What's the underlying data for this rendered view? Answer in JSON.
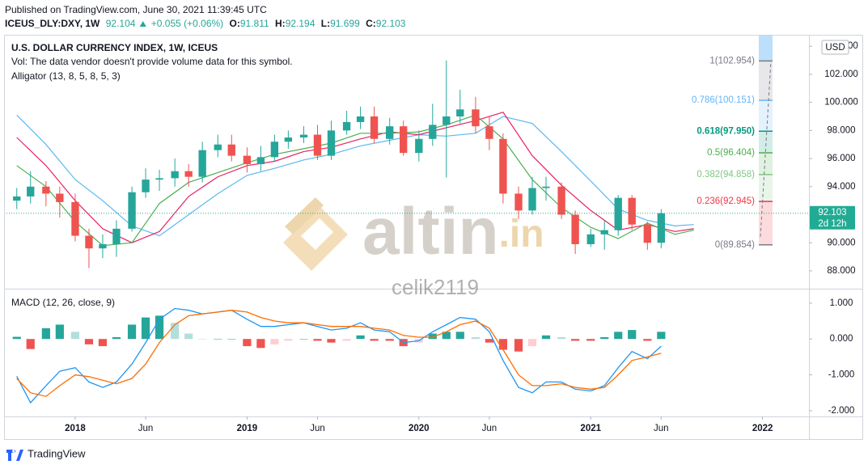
{
  "header": {
    "published": "Published on TradingView.com, June 30, 2021 11:39:45 UTC",
    "symbol": "ICEUS_DLY:DXY, 1W",
    "last": "92.104",
    "change": "+0.055 (+0.06%)",
    "o_label": "O:",
    "o": "91.811",
    "h_label": "H:",
    "h": "92.194",
    "l_label": "L:",
    "l": "91.699",
    "c_label": "C:",
    "c": "92.103"
  },
  "watermark": {
    "brand": "altin",
    "tld": ".in",
    "user": "celik2119"
  },
  "footer": {
    "brand": "TradingView"
  },
  "chart_data": [
    {
      "type": "candlestick",
      "title": "U.S. DOLLAR CURRENCY INDEX, 1W, ICEUS",
      "notes": [
        "Vol: The data vendor doesn't provide volume data for this symbol.",
        "Alligator (13, 8, 5, 8, 5, 3)"
      ],
      "currency": "USD",
      "up_color": "#26a69a",
      "down_color": "#ef5350",
      "x": [
        2017.66,
        2017.74,
        2017.83,
        2017.91,
        2018.0,
        2018.08,
        2018.16,
        2018.24,
        2018.33,
        2018.41,
        2018.49,
        2018.58,
        2018.66,
        2018.74,
        2018.83,
        2018.91,
        2019.0,
        2019.08,
        2019.16,
        2019.24,
        2019.33,
        2019.41,
        2019.49,
        2019.58,
        2019.66,
        2019.74,
        2019.83,
        2019.91,
        2020.0,
        2020.08,
        2020.16,
        2020.24,
        2020.33,
        2020.41,
        2020.49,
        2020.58,
        2020.66,
        2020.74,
        2020.83,
        2020.91,
        2021.0,
        2021.08,
        2021.16,
        2021.24,
        2021.33,
        2021.41
      ],
      "open": [
        93.0,
        93.3,
        94.0,
        93.5,
        92.9,
        90.5,
        89.6,
        89.9,
        91.0,
        93.6,
        94.5,
        94.6,
        95.1,
        94.7,
        96.6,
        97.0,
        96.2,
        95.6,
        96.1,
        97.2,
        97.5,
        97.7,
        96.2,
        98.0,
        98.6,
        99.0,
        97.4,
        98.3,
        96.4,
        97.4,
        98.4,
        99.0,
        99.5,
        98.3,
        97.4,
        93.5,
        92.3,
        93.9,
        94.0,
        92.0,
        89.9,
        90.6,
        90.9,
        93.2,
        91.3,
        90.0
      ],
      "high": [
        93.9,
        95.1,
        94.4,
        94.0,
        93.5,
        91.0,
        90.6,
        91.6,
        94.0,
        95.3,
        95.2,
        96.0,
        95.6,
        97.2,
        97.7,
        97.7,
        96.8,
        96.9,
        97.7,
        98.0,
        98.3,
        98.4,
        98.7,
        99.4,
        99.7,
        99.7,
        98.9,
        98.7,
        98.0,
        99.9,
        102.99,
        100.9,
        100.4,
        99.0,
        97.8,
        94.0,
        94.7,
        94.7,
        94.3,
        92.3,
        91.0,
        91.6,
        93.4,
        93.4,
        91.5,
        92.4
      ],
      "low": [
        92.4,
        92.8,
        92.6,
        91.8,
        90.1,
        88.2,
        88.9,
        89.0,
        90.8,
        93.2,
        93.7,
        94.0,
        94.0,
        94.3,
        96.1,
        95.8,
        95.0,
        95.1,
        95.8,
        96.7,
        97.1,
        95.9,
        95.9,
        97.7,
        98.1,
        97.1,
        97.0,
        96.2,
        95.8,
        96.9,
        94.65,
        98.5,
        97.8,
        96.6,
        92.8,
        91.7,
        92.0,
        93.0,
        91.7,
        89.2,
        89.7,
        89.5,
        90.5,
        90.9,
        89.5,
        89.6
      ],
      "close": [
        93.3,
        94.0,
        93.5,
        92.9,
        90.5,
        89.6,
        89.9,
        91.0,
        93.6,
        94.5,
        94.6,
        95.1,
        94.7,
        96.6,
        97.0,
        96.2,
        95.6,
        96.1,
        97.2,
        97.5,
        97.7,
        96.2,
        98.0,
        98.6,
        99.0,
        97.4,
        98.3,
        96.4,
        97.4,
        98.4,
        99.0,
        99.5,
        98.3,
        97.4,
        93.5,
        92.3,
        93.9,
        94.0,
        92.0,
        89.9,
        90.6,
        90.9,
        93.2,
        91.3,
        90.0,
        92.1
      ],
      "alligator": {
        "x": [
          2017.66,
          2017.83,
          2018.0,
          2018.16,
          2018.33,
          2018.49,
          2018.66,
          2018.83,
          2019.0,
          2019.16,
          2019.33,
          2019.49,
          2019.66,
          2019.83,
          2020.0,
          2020.16,
          2020.33,
          2020.49,
          2020.66,
          2020.83,
          2021.0,
          2021.16,
          2021.33,
          2021.49,
          2021.6
        ],
        "lines": [
          {
            "color": "#5bb8f0",
            "values": [
              99.1,
              97.0,
              94.5,
              93.0,
              91.2,
              90.5,
              92.0,
              93.5,
              94.8,
              95.3,
              95.9,
              96.3,
              96.9,
              97.3,
              97.7,
              97.6,
              97.8,
              99.0,
              98.5,
              96.5,
              94.4,
              92.4,
              91.6,
              91.2,
              91.3
            ]
          },
          {
            "color": "#e91e63",
            "values": [
              97.5,
              95.5,
              93.0,
              91.0,
              90.0,
              90.8,
              93.3,
              94.7,
              95.5,
              95.8,
              96.5,
              96.8,
              97.4,
              97.9,
              97.7,
              98.2,
              98.7,
              99.3,
              96.2,
              94.1,
              92.3,
              90.9,
              91.3,
              90.8,
              91.0
            ]
          },
          {
            "color": "#4caf50",
            "values": [
              95.5,
              94.0,
              91.5,
              89.8,
              90.0,
              92.8,
              94.3,
              95.0,
              95.7,
              96.3,
              96.7,
              97.1,
              97.8,
              97.8,
              97.9,
              98.4,
              99.1,
              97.4,
              94.5,
              92.5,
              91.1,
              90.3,
              91.4,
              90.6,
              90.9
            ]
          }
        ]
      },
      "fib": {
        "levels": [
          {
            "value": 102.954,
            "label": "1(102.954)",
            "color": "#787b86"
          },
          {
            "value": 100.151,
            "label": "0.786(100.151)",
            "color": "#64b5f6"
          },
          {
            "value": 97.95,
            "label": "0.618(97.950)",
            "color": "#089981"
          },
          {
            "value": 96.404,
            "label": "0.5(96.404)",
            "color": "#4caf50"
          },
          {
            "value": 94.858,
            "label": "0.382(94.858)",
            "color": "#81c784"
          },
          {
            "value": 92.945,
            "label": "0.236(92.945)",
            "color": "#f23645"
          },
          {
            "value": 89.854,
            "label": "0(89.854)",
            "color": "#787b86"
          }
        ]
      },
      "last_price": {
        "value": 92.103,
        "label": "92.103",
        "countdown": "2d 12h",
        "color": "#22ab94"
      },
      "xlim": [
        2017.6,
        2022.27
      ],
      "xticks": [
        {
          "value": 2018,
          "label": "2018"
        },
        {
          "value": 2018.41,
          "label": "Jun"
        },
        {
          "value": 2019,
          "label": "2019"
        },
        {
          "value": 2019.41,
          "label": "Jun"
        },
        {
          "value": 2020,
          "label": "2020"
        },
        {
          "value": 2020.41,
          "label": "Jun"
        },
        {
          "value": 2021,
          "label": "2021"
        },
        {
          "value": 2021.41,
          "label": "Jun"
        },
        {
          "value": 2022,
          "label": "2022"
        }
      ],
      "ylim": [
        86.73,
        104.76
      ],
      "yticks": [
        {
          "value": 88,
          "label": "88.000"
        },
        {
          "value": 90,
          "label": "90.000"
        },
        {
          "value": 92,
          "label": "92.000"
        },
        {
          "value": 94,
          "label": "94.000"
        },
        {
          "value": 96,
          "label": "96.000"
        },
        {
          "value": 98,
          "label": "98.000"
        },
        {
          "value": 100,
          "label": "100.000"
        },
        {
          "value": 102,
          "label": "102.000"
        },
        {
          "value": 104,
          "label": "104.000"
        }
      ]
    },
    {
      "type": "macd",
      "title": "MACD (12, 26, close, 9)",
      "series": [
        {
          "color": "#2196f3",
          "values": [
            -1.04,
            -1.78,
            -1.3,
            -0.9,
            -0.8,
            -1.2,
            -1.35,
            -1.2,
            -0.7,
            -0.1,
            0.55,
            0.85,
            0.8,
            0.7,
            0.75,
            0.8,
            0.55,
            0.35,
            0.35,
            0.4,
            0.45,
            0.35,
            0.25,
            0.3,
            0.45,
            0.25,
            0.2,
            -0.1,
            -0.05,
            0.2,
            0.4,
            0.6,
            0.55,
            0.2,
            -0.6,
            -1.35,
            -1.5,
            -1.2,
            -1.2,
            -1.4,
            -1.45,
            -1.3,
            -0.8,
            -0.35,
            -0.55,
            -0.2
          ]
        },
        {
          "color": "#ff6d00",
          "values": [
            -1.1,
            -1.5,
            -1.6,
            -1.3,
            -1.0,
            -1.05,
            -1.15,
            -1.25,
            -1.1,
            -0.7,
            -0.1,
            0.4,
            0.65,
            0.7,
            0.75,
            0.8,
            0.75,
            0.6,
            0.5,
            0.45,
            0.45,
            0.4,
            0.35,
            0.35,
            0.35,
            0.3,
            0.25,
            0.1,
            0.05,
            0.05,
            0.2,
            0.4,
            0.5,
            0.3,
            -0.3,
            -1.0,
            -1.3,
            -1.3,
            -1.25,
            -1.35,
            -1.4,
            -1.35,
            -1.0,
            -0.6,
            -0.5,
            -0.4
          ]
        }
      ],
      "histogram": [
        0.06,
        -0.28,
        0.3,
        0.4,
        0.2,
        -0.15,
        -0.2,
        0.05,
        0.4,
        0.6,
        0.65,
        0.45,
        0.15,
        0,
        0,
        0,
        -0.2,
        -0.25,
        -0.15,
        -0.05,
        0,
        -0.05,
        -0.1,
        -0.05,
        0.1,
        -0.05,
        -0.05,
        -0.2,
        -0.1,
        0.15,
        0.2,
        0.2,
        0.05,
        -0.1,
        -0.3,
        -0.35,
        -0.2,
        0.1,
        0.05,
        -0.05,
        -0.05,
        0.05,
        0.2,
        0.25,
        -0.05,
        0.2
      ],
      "histogram_colors": {
        "grow_above": "#26a69a",
        "fall_above": "#b2dfdb",
        "grow_below": "#ffcdd2",
        "fall_below": "#ef5350"
      },
      "ylim": [
        -2.16,
        1.38
      ],
      "yticks": [
        {
          "value": 1,
          "label": "1.000"
        },
        {
          "value": 0,
          "label": "0.000"
        },
        {
          "value": -1,
          "label": "-1.000"
        },
        {
          "value": -2,
          "label": "-2.000"
        }
      ]
    }
  ]
}
